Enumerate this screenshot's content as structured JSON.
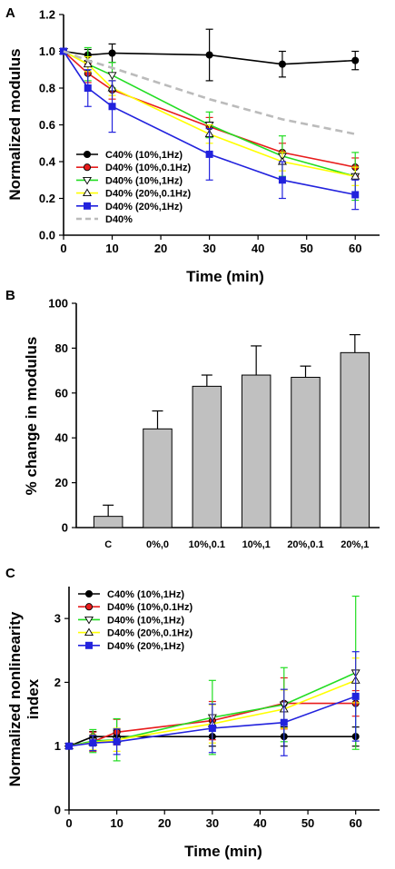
{
  "chart_data": [
    {
      "panel": "A",
      "type": "line",
      "xlabel": "Time (min)",
      "ylabel": "Normalized modulus",
      "xlim": [
        0,
        65
      ],
      "ylim": [
        0.0,
        1.2
      ],
      "xticks": [
        0,
        10,
        20,
        30,
        40,
        50,
        60
      ],
      "yticks": [
        "0.0",
        "0.2",
        "0.4",
        "0.6",
        "0.8",
        "1.0",
        "1.2"
      ],
      "legend_position": "lower-left",
      "series": [
        {
          "name": "C40% (10%,1Hz)",
          "color": "#000000",
          "marker": "circle",
          "line": "solid",
          "x": [
            0,
            5,
            10,
            30,
            45,
            60
          ],
          "y": [
            1.0,
            0.98,
            0.99,
            0.98,
            0.93,
            0.95
          ],
          "err": [
            0,
            0.03,
            0.05,
            0.14,
            0.07,
            0.05
          ]
        },
        {
          "name": "D40% (10%,0.1Hz)",
          "color": "#e81c1c",
          "marker": "circle",
          "line": "solid",
          "x": [
            0,
            5,
            10,
            30,
            45,
            60
          ],
          "y": [
            1.0,
            0.88,
            0.79,
            0.59,
            0.45,
            0.37
          ],
          "err": [
            0,
            0.05,
            0.05,
            0.05,
            0.05,
            0.05
          ]
        },
        {
          "name": "D40% (10%,1Hz)",
          "color": "#22dd22",
          "marker": "triangle-down",
          "line": "solid",
          "x": [
            0,
            5,
            10,
            30,
            45,
            60
          ],
          "y": [
            1.0,
            0.93,
            0.87,
            0.6,
            0.43,
            0.32
          ],
          "err": [
            0,
            0.09,
            0.07,
            0.07,
            0.11,
            0.13
          ]
        },
        {
          "name": "D40% (20%,0.1Hz)",
          "color": "#ffff00",
          "marker": "triangle-up",
          "line": "solid",
          "x": [
            0,
            5,
            10,
            30,
            45,
            60
          ],
          "y": [
            1.0,
            0.93,
            0.8,
            0.55,
            0.4,
            0.32
          ],
          "err": [
            0,
            0.04,
            0.04,
            0.05,
            0.05,
            0.05
          ]
        },
        {
          "name": "D40% (20%,1Hz)",
          "color": "#2222dd",
          "marker": "square",
          "line": "solid",
          "x": [
            0,
            5,
            10,
            30,
            45,
            60
          ],
          "y": [
            1.0,
            0.8,
            0.7,
            0.44,
            0.3,
            0.22
          ],
          "err": [
            0,
            0.1,
            0.14,
            0.14,
            0.1,
            0.08
          ]
        },
        {
          "name": "D40%",
          "color": "#bbbbbb",
          "marker": "none",
          "line": "dashed",
          "x": [
            0,
            5,
            10,
            30,
            45,
            60
          ],
          "y": [
            1.0,
            0.95,
            0.91,
            0.74,
            0.63,
            0.55
          ],
          "err": [
            0,
            0,
            0,
            0,
            0,
            0
          ]
        }
      ]
    },
    {
      "panel": "B",
      "type": "bar",
      "xlabel": "",
      "ylabel": "% change in modulus",
      "ylim": [
        0,
        100
      ],
      "yticks": [
        0,
        20,
        40,
        60,
        80,
        100
      ],
      "bar_color": "#c0c0c0",
      "categories": [
        "C",
        "0%,0",
        "10%,0.1",
        "10%,1",
        "20%,0.1",
        "20%,1"
      ],
      "values": [
        5,
        44,
        63,
        68,
        67,
        78
      ],
      "err": [
        5,
        8,
        5,
        13,
        5,
        8
      ]
    },
    {
      "panel": "C",
      "type": "line",
      "xlabel": "Time (min)",
      "ylabel": "Normalized nonlinearity index",
      "ylabel_lines": [
        "Normalized nonlinearity",
        "index"
      ],
      "xlim": [
        0,
        65
      ],
      "ylim": [
        0,
        3.5
      ],
      "xticks": [
        0,
        10,
        20,
        30,
        40,
        50,
        60
      ],
      "yticks": [
        0,
        1,
        2,
        3
      ],
      "legend_position": "upper-left",
      "series": [
        {
          "name": "C40% (10%,1Hz)",
          "color": "#000000",
          "marker": "circle",
          "line": "solid",
          "x": [
            0,
            5,
            10,
            30,
            45,
            60
          ],
          "y": [
            1.0,
            1.15,
            1.15,
            1.15,
            1.15,
            1.15
          ],
          "err": [
            0,
            0.08,
            0.1,
            0.15,
            0.15,
            0.15
          ]
        },
        {
          "name": "D40% (10%,0.1Hz)",
          "color": "#e81c1c",
          "marker": "circle",
          "line": "solid",
          "x": [
            0,
            5,
            10,
            30,
            45,
            60
          ],
          "y": [
            1.0,
            1.07,
            1.22,
            1.4,
            1.67,
            1.67
          ],
          "err": [
            0,
            0.15,
            0.2,
            0.3,
            0.4,
            0.2
          ]
        },
        {
          "name": "D40% (10%,1Hz)",
          "color": "#22dd22",
          "marker": "triangle-down",
          "line": "solid",
          "x": [
            0,
            5,
            10,
            30,
            45,
            60
          ],
          "y": [
            1.0,
            1.08,
            1.1,
            1.45,
            1.65,
            2.15
          ],
          "err": [
            0,
            0.18,
            0.33,
            0.58,
            0.58,
            1.2
          ]
        },
        {
          "name": "D40% (20%,0.1Hz)",
          "color": "#ffff00",
          "marker": "triangle-up",
          "line": "solid",
          "x": [
            0,
            5,
            10,
            30,
            45,
            60
          ],
          "y": [
            1.0,
            1.06,
            1.1,
            1.35,
            1.58,
            2.03
          ],
          "err": [
            0,
            0.12,
            0.18,
            0.3,
            0.3,
            0.35
          ]
        },
        {
          "name": "D40% (20%,1Hz)",
          "color": "#2222dd",
          "marker": "square",
          "line": "solid",
          "x": [
            0,
            5,
            10,
            30,
            45,
            60
          ],
          "y": [
            1.0,
            1.05,
            1.07,
            1.28,
            1.37,
            1.78
          ],
          "err": [
            0,
            0.12,
            0.2,
            0.38,
            0.52,
            0.7
          ]
        }
      ]
    }
  ]
}
